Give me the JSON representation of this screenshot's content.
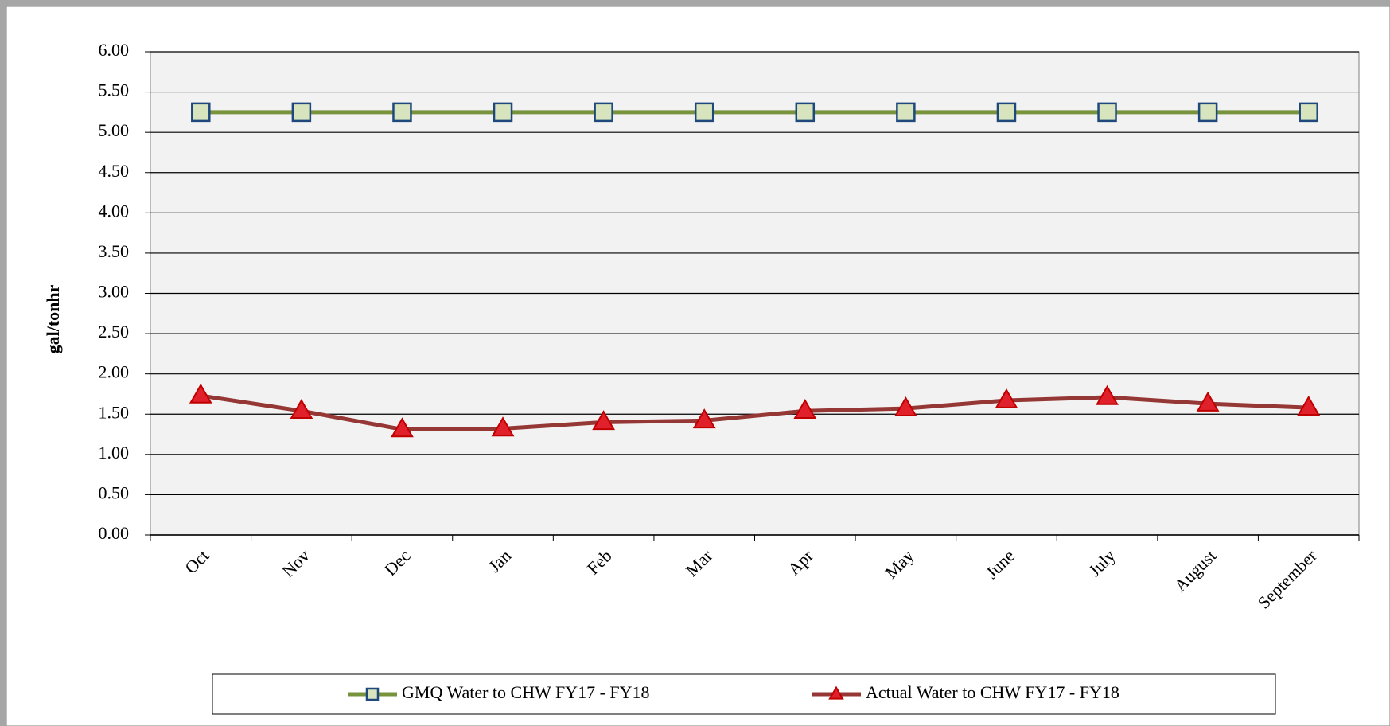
{
  "chart_data": {
    "type": "line",
    "y_label": "gal/tonhr",
    "categories": [
      "Oct",
      "Nov",
      "Dec",
      "Jan",
      "Feb",
      "Mar",
      "Apr",
      "May",
      "June",
      "July",
      "August",
      "September"
    ],
    "series": [
      {
        "name": "GMQ Water to CHW FY17 - FY18",
        "color": "#77933c",
        "marker": "square",
        "marker_fill": "#d7e4bd",
        "marker_stroke": "#1f497d",
        "values": [
          5.25,
          5.25,
          5.25,
          5.25,
          5.25,
          5.25,
          5.25,
          5.25,
          5.25,
          5.25,
          5.25,
          5.25
        ]
      },
      {
        "name": "Actual Water to CHW FY17 - FY18",
        "color": "#953735",
        "marker": "triangle",
        "marker_fill": "#e0202a",
        "marker_stroke": "#c00000",
        "values": [
          1.73,
          1.54,
          1.31,
          1.32,
          1.4,
          1.42,
          1.54,
          1.57,
          1.67,
          1.71,
          1.63,
          1.58
        ]
      }
    ],
    "ylim": [
      0,
      6
    ],
    "yticks": [
      {
        "value": 0,
        "label": "0.00"
      },
      {
        "value": 0.5,
        "label": "0.50"
      },
      {
        "value": 1,
        "label": "1.00"
      },
      {
        "value": 1.5,
        "label": "1.50"
      },
      {
        "value": 2,
        "label": "2.00"
      },
      {
        "value": 2.5,
        "label": "2.50"
      },
      {
        "value": 3,
        "label": "3.00"
      },
      {
        "value": 3.5,
        "label": "3.50"
      },
      {
        "value": 4,
        "label": "4.00"
      },
      {
        "value": 4.5,
        "label": "4.50"
      },
      {
        "value": 5,
        "label": "5.00"
      },
      {
        "value": 5.5,
        "label": "5.50"
      },
      {
        "value": 6,
        "label": "6.00"
      }
    ],
    "grid": true,
    "legend": "bottom"
  }
}
